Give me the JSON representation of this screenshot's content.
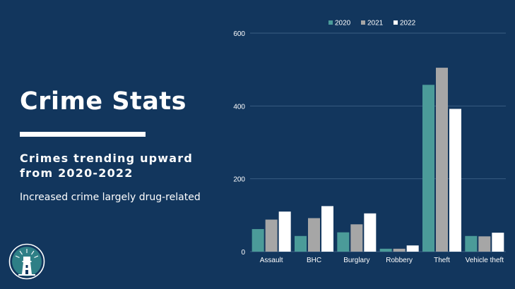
{
  "slide": {
    "title": "Crime Stats",
    "subtitle": "Crimes trending upward from 2020-2022",
    "body": "Increased crime largely drug-related"
  },
  "logo": {
    "icon": "lighthouse-seal-icon"
  },
  "colors": {
    "background": "#12365d",
    "series_2020": "#4b9b99",
    "series_2021": "#a6a6a6",
    "series_2022": "#ffffff",
    "gridline": "#3a5d82"
  },
  "chart_data": {
    "type": "bar",
    "title": "",
    "xlabel": "",
    "ylabel": "",
    "ylim": [
      0,
      600
    ],
    "yticks": [
      "0",
      "200",
      "400",
      "600"
    ],
    "grid": true,
    "legend": "top",
    "categories": [
      "Assault",
      "BHC",
      "Burglary",
      "Robbery",
      "Theft",
      "Vehicle theft"
    ],
    "series": [
      {
        "name": "2020",
        "color": "#4b9b99",
        "values": [
          62,
          43,
          53,
          8,
          458,
          43
        ]
      },
      {
        "name": "2021",
        "color": "#a6a6a6",
        "values": [
          88,
          92,
          75,
          8,
          505,
          42
        ]
      },
      {
        "name": "2022",
        "color": "#ffffff",
        "values": [
          110,
          125,
          105,
          17,
          392,
          52
        ]
      }
    ]
  }
}
